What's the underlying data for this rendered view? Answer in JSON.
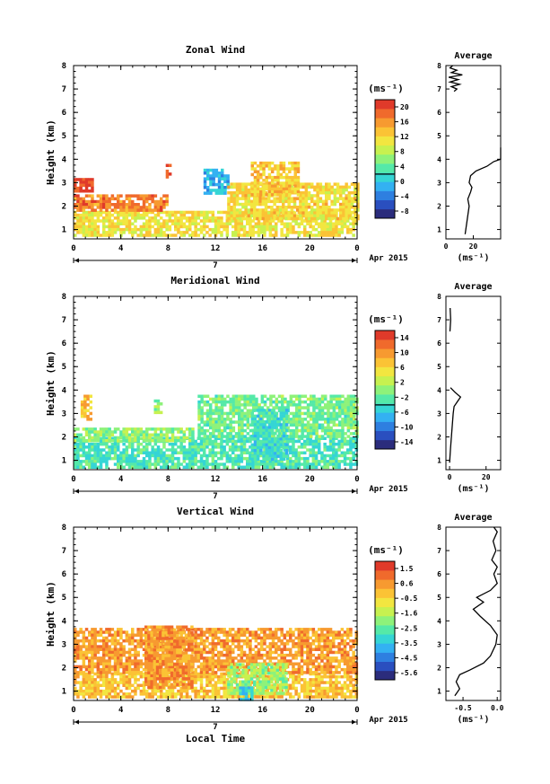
{
  "chart_data": [
    {
      "type": "heatmap",
      "title": "Zonal Wind",
      "ylabel": "Height (km)",
      "ylim": [
        0.6,
        8
      ],
      "xlim": [
        0,
        24
      ],
      "x_ticks": [
        "0",
        "4",
        "8",
        "12",
        "16",
        "20",
        "0"
      ],
      "y_ticks": [
        "1",
        "2",
        "3",
        "4",
        "5",
        "6",
        "7",
        "8"
      ],
      "date_label": "Apr 2015",
      "day_label": "7",
      "colorbar": {
        "unit": "(ms⁻¹)",
        "ticks": [
          "20",
          "16",
          "12",
          "8",
          "4",
          "0",
          "-4",
          "-8"
        ],
        "range": [
          -10,
          22
        ],
        "colors": [
          "#2b2c7c",
          "#2a4fbf",
          "#2e7fe0",
          "#33b1f2",
          "#35d5d5",
          "#55e9a8",
          "#8ef27a",
          "#c7f150",
          "#f2e640",
          "#fbc335",
          "#f79a30",
          "#f06a2c",
          "#e03a2a"
        ]
      },
      "fields": [
        {
          "x": [
            0,
            24
          ],
          "y": [
            0.7,
            1.8
          ],
          "value": 11
        },
        {
          "x": [
            0,
            8
          ],
          "y": [
            1.8,
            2.5
          ],
          "value": 17
        },
        {
          "x": [
            0,
            1.5
          ],
          "y": [
            2.6,
            3.2
          ],
          "value": 21
        },
        {
          "x": [
            7.8,
            8.2
          ],
          "y": [
            3.2,
            3.8
          ],
          "value": 21
        },
        {
          "x": [
            11,
            13
          ],
          "y": [
            2.6,
            3.6
          ],
          "value": -1
        },
        {
          "x": [
            13,
            24
          ],
          "y": [
            1.5,
            3.0
          ],
          "value": 12
        },
        {
          "x": [
            15,
            19
          ],
          "y": [
            2.5,
            3.9
          ],
          "value": 13
        }
      ],
      "average": {
        "title": "Average",
        "xlim": [
          0,
          40
        ],
        "x_ticks": [
          "0",
          "20"
        ],
        "xlabel": "(ms⁻¹)",
        "profile": [
          [
            14,
            0.8
          ],
          [
            15,
            1.2
          ],
          [
            16,
            1.6
          ],
          [
            17,
            2.0
          ],
          [
            16,
            2.3
          ],
          [
            18,
            2.6
          ],
          [
            19,
            2.8
          ],
          [
            17,
            3.0
          ],
          [
            18,
            3.3
          ],
          [
            22,
            3.5
          ],
          [
            30,
            3.7
          ],
          [
            35,
            3.9
          ],
          [
            40,
            4.0
          ],
          [
            40,
            4.3
          ],
          [
            40,
            4.5
          ],
          [
            6,
            6.9
          ],
          [
            8,
            7.0
          ],
          [
            4,
            7.1
          ],
          [
            10,
            7.2
          ],
          [
            3,
            7.3
          ],
          [
            9,
            7.4
          ],
          [
            2,
            7.5
          ],
          [
            12,
            7.6
          ],
          [
            4,
            7.7
          ],
          [
            8,
            7.8
          ],
          [
            3,
            7.9
          ],
          [
            5,
            8.0
          ]
        ]
      }
    },
    {
      "type": "heatmap",
      "title": "Meridional Wind",
      "ylabel": "Height (km)",
      "ylim": [
        0.6,
        8
      ],
      "xlim": [
        0,
        24
      ],
      "x_ticks": [
        "0",
        "4",
        "8",
        "12",
        "16",
        "20",
        "0"
      ],
      "y_ticks": [
        "1",
        "2",
        "3",
        "4",
        "5",
        "6",
        "7",
        "8"
      ],
      "date_label": "Apr 2015",
      "day_label": "7",
      "colorbar": {
        "unit": "(ms⁻¹)",
        "ticks": [
          "14",
          "10",
          "6",
          "2",
          "-2",
          "-6",
          "-10",
          "-14"
        ],
        "range": [
          -16,
          16
        ],
        "colors": [
          "#2b2c7c",
          "#2a4fbf",
          "#2e7fe0",
          "#33b1f2",
          "#35d5d5",
          "#55e9a8",
          "#8ef27a",
          "#c7f150",
          "#f2e640",
          "#fbc335",
          "#f79a30",
          "#f06a2c",
          "#e03a2a"
        ]
      },
      "fields": [
        {
          "x": [
            0,
            24
          ],
          "y": [
            0.7,
            2.0
          ],
          "value": -3
        },
        {
          "x": [
            0,
            10
          ],
          "y": [
            1.8,
            2.4
          ],
          "value": 0
        },
        {
          "x": [
            0.6,
            1.4
          ],
          "y": [
            2.8,
            3.8
          ],
          "value": 8
        },
        {
          "x": [
            6.8,
            7.4
          ],
          "y": [
            3.0,
            3.6
          ],
          "value": 1
        },
        {
          "x": [
            10.5,
            24
          ],
          "y": [
            2.0,
            3.8
          ],
          "value": -1
        },
        {
          "x": [
            15,
            18
          ],
          "y": [
            1.0,
            3.2
          ],
          "value": -4
        }
      ],
      "average": {
        "title": "Average",
        "xlim": [
          -2,
          28
        ],
        "x_ticks": [
          "0",
          "20"
        ],
        "xlabel": "(ms⁻¹)",
        "profile": [
          [
            0,
            0.9
          ],
          [
            0.5,
            1.5
          ],
          [
            1,
            2.0
          ],
          [
            1.5,
            2.5
          ],
          [
            2,
            3.0
          ],
          [
            2.5,
            3.3
          ],
          [
            6,
            3.7
          ],
          [
            3,
            3.9
          ],
          [
            0.5,
            4.1
          ],
          [
            0.2,
            6.5
          ],
          [
            0.6,
            7.0
          ],
          [
            0.3,
            7.5
          ]
        ]
      }
    },
    {
      "type": "heatmap",
      "title": "Vertical Wind",
      "ylabel": "Height (km)",
      "xlabel": "Local Time",
      "ylim": [
        0.6,
        8
      ],
      "xlim": [
        0,
        24
      ],
      "x_ticks": [
        "0",
        "4",
        "8",
        "12",
        "16",
        "20",
        "0"
      ],
      "y_ticks": [
        "1",
        "2",
        "3",
        "4",
        "5",
        "6",
        "7",
        "8"
      ],
      "date_label": "Apr 2015",
      "day_label": "7",
      "colorbar": {
        "unit": "(ms⁻¹)",
        "ticks": [
          "1.5",
          "0.6",
          "-0.5",
          "-1.6",
          "-2.5",
          "-3.5",
          "-4.5",
          "-5.6"
        ],
        "range": [
          -6,
          2
        ],
        "colors": [
          "#2b2c7c",
          "#2a4fbf",
          "#2e7fe0",
          "#33b1f2",
          "#35d5d5",
          "#55e9a8",
          "#8ef27a",
          "#c7f150",
          "#f2e640",
          "#fbc335",
          "#f79a30",
          "#f06a2c",
          "#e03a2a"
        ]
      },
      "fields": [
        {
          "x": [
            0,
            24
          ],
          "y": [
            0.7,
            1.8
          ],
          "value": -0.2
        },
        {
          "x": [
            0,
            24
          ],
          "y": [
            1.8,
            3.7
          ],
          "value": 0.4
        },
        {
          "x": [
            6,
            10
          ],
          "y": [
            1.2,
            3.8
          ],
          "value": 0.5
        },
        {
          "x": [
            13,
            18
          ],
          "y": [
            0.9,
            2.2
          ],
          "value": -1.8
        },
        {
          "x": [
            14,
            15
          ],
          "y": [
            0.7,
            1.2
          ],
          "value": -3.5
        }
      ],
      "average": {
        "title": "Average",
        "xlim": [
          -0.75,
          0.05
        ],
        "x_ticks": [
          "-0.5",
          "0.0"
        ],
        "xlabel": "(ms⁻¹)",
        "profile": [
          [
            -0.62,
            0.8
          ],
          [
            -0.55,
            1.1
          ],
          [
            -0.6,
            1.4
          ],
          [
            -0.55,
            1.7
          ],
          [
            -0.4,
            1.9
          ],
          [
            -0.2,
            2.2
          ],
          [
            -0.1,
            2.5
          ],
          [
            -0.02,
            3.0
          ],
          [
            0.0,
            3.4
          ],
          [
            -0.1,
            3.8
          ],
          [
            -0.25,
            4.2
          ],
          [
            -0.35,
            4.5
          ],
          [
            -0.2,
            4.8
          ],
          [
            -0.3,
            5.0
          ],
          [
            -0.1,
            5.3
          ],
          [
            0.0,
            5.6
          ],
          [
            -0.05,
            6.0
          ],
          [
            0.0,
            6.3
          ],
          [
            -0.08,
            6.6
          ],
          [
            -0.02,
            7.0
          ],
          [
            -0.06,
            7.4
          ],
          [
            0.0,
            7.8
          ],
          [
            -0.05,
            8.0
          ]
        ]
      }
    }
  ]
}
